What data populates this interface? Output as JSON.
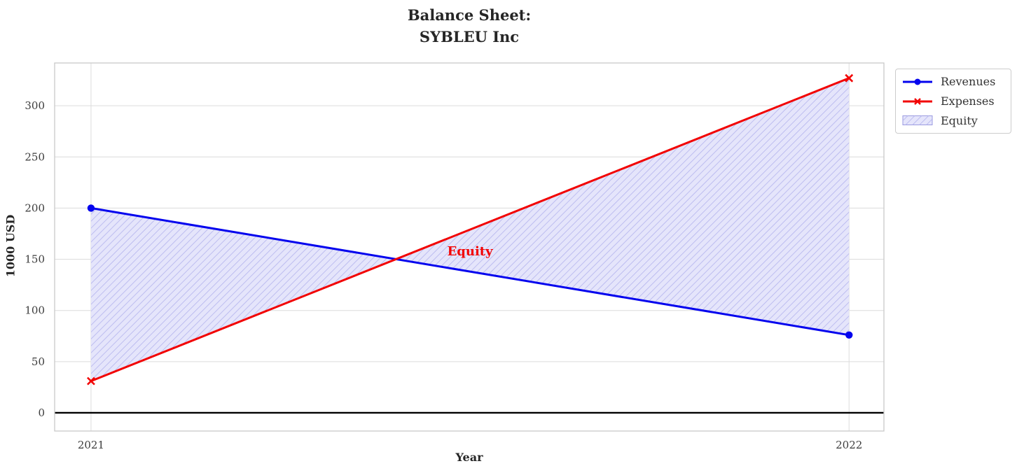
{
  "title": {
    "line1": "Balance Sheet:",
    "line2": "SYBLEU Inc"
  },
  "chart_data": {
    "type": "line",
    "title": "Balance Sheet: SYBLEU Inc",
    "xlabel": "Year",
    "ylabel": "1000 USD",
    "x": [
      2021,
      2022
    ],
    "x_tick_labels": [
      "2021",
      "2022"
    ],
    "yticks": [
      0,
      50,
      100,
      150,
      200,
      250,
      300
    ],
    "xlim": [
      2020.952,
      2022.046
    ],
    "ylim": [
      -17.8,
      341.8
    ],
    "grid": true,
    "zero_line_y": 0,
    "series": [
      {
        "name": "Revenues",
        "values": [
          200,
          76
        ],
        "color": "#0404ee",
        "marker": "circle",
        "line_width": 3
      },
      {
        "name": "Expenses",
        "values": [
          31,
          327
        ],
        "color": "#f20202",
        "marker": "x",
        "line_width": 3
      }
    ],
    "fill_between": {
      "label": "Equity",
      "between": [
        "Revenues",
        "Expenses"
      ],
      "facecolor": "#e5e5fb",
      "hatch": "//",
      "hatch_color": "#b6b6ee",
      "edge_color": "#9a9ae0"
    },
    "annotation": {
      "text": "Equity",
      "color": "#f20202",
      "x": 2021.5,
      "y": 158
    },
    "legend": {
      "position": "upper-right-outside",
      "entries": [
        "Revenues",
        "Expenses",
        "Equity"
      ]
    },
    "style": {
      "grid_color": "#dcdcdc",
      "spine_color": "#cacaca",
      "tick_color": "#3c3c3c",
      "zero_line_color": "#000000"
    }
  }
}
